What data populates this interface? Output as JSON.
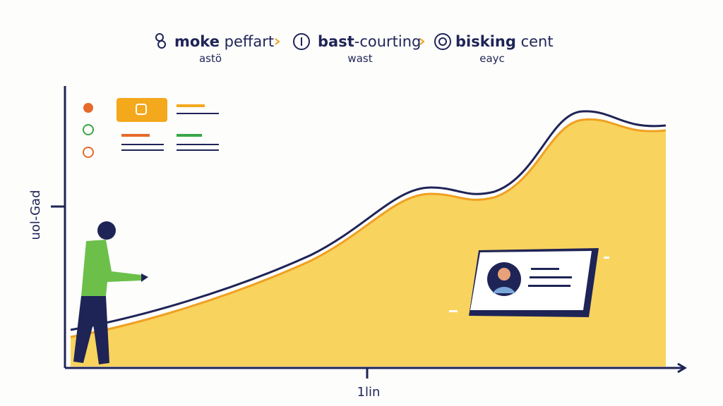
{
  "header": {
    "steps": [
      {
        "bold": "moke",
        "rest": " peffart",
        "sub": "astö"
      },
      {
        "bold": "bast",
        "rest": "-courting",
        "sub": "wast"
      },
      {
        "bold": "bisking",
        "rest": " cent",
        "sub": "eayc"
      }
    ]
  },
  "axes": {
    "y_label": "uol-Gad",
    "x_label": "1lin"
  }
}
